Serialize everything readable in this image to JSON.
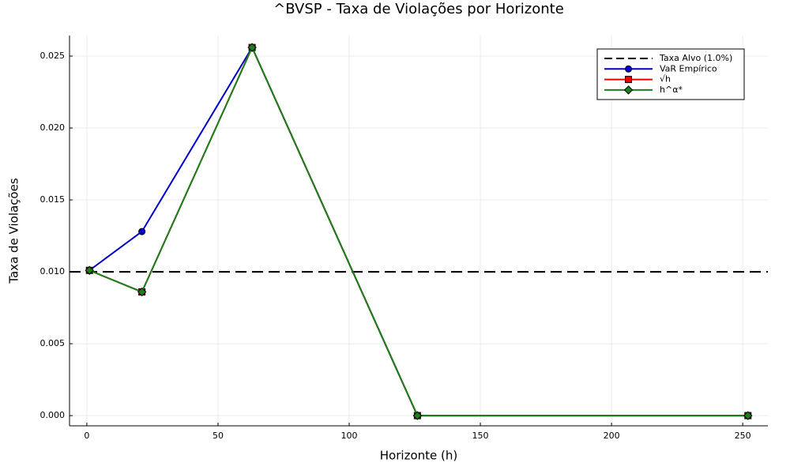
{
  "chart_data": {
    "type": "line",
    "title": "^BVSP - Taxa de Violações por Horizonte",
    "x_label": "Horizonte (h)",
    "y_label": "Taxa de Violações",
    "x": [
      1,
      21,
      63,
      126,
      252
    ],
    "series": [
      {
        "name": "VaR Empírico",
        "color": "#0000cc",
        "marker": "circle",
        "values": [
          0.0101,
          0.0128,
          0.0256,
          0.0,
          0.0
        ]
      },
      {
        "name": "√h",
        "color": "#ee0000",
        "marker": "square",
        "values": [
          0.0101,
          0.0086,
          0.0256,
          0.0,
          0.0
        ]
      },
      {
        "name": "h^α*",
        "color": "#1a801a",
        "marker": "diamond",
        "values": [
          0.0101,
          0.0086,
          0.0256,
          0.0,
          0.0
        ]
      }
    ],
    "reference_line": {
      "name": "Taxa Alvo (1.0%)",
      "value": 0.01,
      "color": "#000000"
    },
    "xlim": [
      -6.6,
      259.6
    ],
    "ylim": [
      -0.00071,
      0.02643
    ],
    "xticks": [
      0,
      50,
      100,
      150,
      200,
      250
    ],
    "yticks": [
      {
        "value": 0,
        "label": "0.000"
      },
      {
        "value": 0.005,
        "label": "0.005"
      },
      {
        "value": 0.01,
        "label": "0.010"
      },
      {
        "value": 0.015,
        "label": "0.015"
      },
      {
        "value": 0.02,
        "label": "0.020"
      },
      {
        "value": 0.025,
        "label": "0.025"
      }
    ],
    "grid": true,
    "legend_position": "top-right"
  }
}
